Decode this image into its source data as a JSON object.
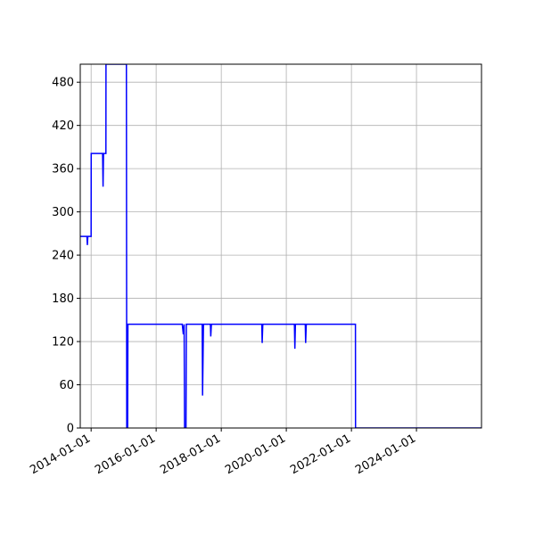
{
  "chart_data": {
    "type": "line",
    "title": "",
    "xlabel": "",
    "ylabel": "",
    "grid": true,
    "xlim": [
      "2013-09-01",
      "2025-12-31"
    ],
    "ylim": [
      0,
      505
    ],
    "yticks": [
      0,
      60,
      120,
      180,
      240,
      300,
      360,
      420,
      480
    ],
    "xticks": [
      "2014-01-01",
      "2016-01-01",
      "2018-01-01",
      "2020-01-01",
      "2022-01-01",
      "2024-01-01"
    ],
    "series": [
      {
        "color": "#0000ff",
        "x": [
          "2013-09-01",
          "2013-11-15",
          "2013-11-20",
          "2013-11-25",
          "2014-01-01",
          "2014-01-02",
          "2014-04-01",
          "2014-05-10",
          "2014-05-15",
          "2014-05-20",
          "2014-06-15",
          "2014-06-16",
          "2014-06-17",
          "2015-01-01",
          "2015-02-01",
          "2015-02-05",
          "2015-02-08",
          "2015-02-15",
          "2015-02-18",
          "2015-02-25",
          "2015-03-01",
          "2015-03-01",
          "2016-01-01",
          "2016-10-20",
          "2016-11-01",
          "2016-11-10",
          "2016-11-15",
          "2016-11-20",
          "2016-12-01",
          "2016-12-05",
          "2016-12-10",
          "2017-01-01",
          "2017-06-01",
          "2017-06-05",
          "2017-06-15",
          "2017-06-20",
          "2017-09-01",
          "2017-09-05",
          "2017-09-12",
          "2017-09-15",
          "2018-01-01",
          "2019-04-01",
          "2019-04-05",
          "2019-04-12",
          "2019-04-15",
          "2020-01-01",
          "2020-04-01",
          "2020-04-06",
          "2020-04-12",
          "2020-04-15",
          "2020-08-01",
          "2020-08-05",
          "2020-08-12",
          "2020-08-15",
          "2021-01-01",
          "2022-02-15",
          "2022-02-16",
          "2022-03-01",
          "2025-12-31"
        ],
        "y": [
          266,
          266,
          254,
          266,
          266,
          381,
          381,
          381,
          335,
          381,
          381,
          381,
          505,
          505,
          505,
          0,
          105,
          0,
          144,
          144,
          144,
          144,
          144,
          144,
          130,
          144,
          0,
          0,
          0,
          144,
          144,
          144,
          144,
          45,
          144,
          144,
          144,
          127,
          144,
          144,
          144,
          144,
          118,
          144,
          144,
          144,
          144,
          110,
          144,
          144,
          144,
          118,
          144,
          144,
          144,
          144,
          0,
          0,
          0
        ]
      }
    ]
  }
}
